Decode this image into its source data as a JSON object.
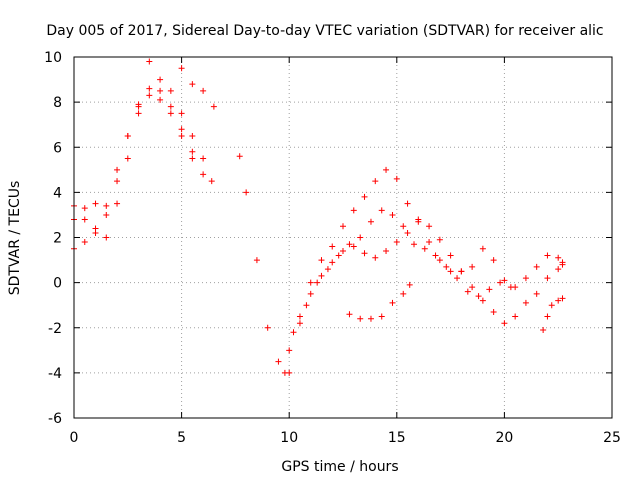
{
  "chart_data": {
    "type": "scatter",
    "title": "Day 005 of 2017, Sidereal Day-to-day VTEC variation (SDTVAR) for receiver alic",
    "xlabel": "GPS time / hours",
    "ylabel": "SDTVAR / TECUs",
    "xlim": [
      0,
      25
    ],
    "ylim": [
      -6,
      10
    ],
    "xticks": [
      "0",
      "5",
      "10",
      "15",
      "20",
      "25"
    ],
    "yticks": [
      "-6",
      "-4",
      "-2",
      "0",
      "2",
      "4",
      "6",
      "8",
      "10"
    ],
    "grid": true,
    "marker": "+",
    "color": "#ff0000",
    "series": [
      {
        "x": [
          0.0,
          0.5,
          1.0,
          1.5,
          2.0,
          2.5,
          3.0,
          3.5,
          4.0,
          4.5,
          5.0,
          5.5,
          6.0,
          6.4
        ],
        "y": [
          3.4,
          2.8,
          2.2,
          2.0,
          3.5,
          5.5,
          7.5,
          9.8,
          9.0,
          8.5,
          7.5,
          6.5,
          5.5,
          4.5
        ]
      },
      {
        "x": [
          0.0,
          0.5,
          1.0,
          1.5,
          2.0,
          2.5,
          3.0,
          3.5,
          4.0,
          4.5,
          5.0,
          5.5,
          6.0
        ],
        "y": [
          1.5,
          1.8,
          2.4,
          3.4,
          5.0,
          6.5,
          7.8,
          8.6,
          8.5,
          7.8,
          6.8,
          5.8,
          4.8
        ]
      },
      {
        "x": [
          0.0,
          0.5,
          1.0,
          1.5,
          2.0,
          2.5,
          3.0,
          3.5,
          4.0,
          4.5,
          5.0,
          5.5
        ],
        "y": [
          2.8,
          3.3,
          3.5,
          3.0,
          4.5,
          6.5,
          7.9,
          8.3,
          8.1,
          7.5,
          6.5,
          5.5
        ]
      },
      {
        "x": [
          5.0,
          5.5,
          6.0,
          6.5
        ],
        "y": [
          9.5,
          8.8,
          8.5,
          7.8
        ]
      },
      {
        "x": [
          7.7,
          8.0,
          8.5,
          9.0,
          9.5,
          10.0
        ],
        "y": [
          5.6,
          4.0,
          1.0,
          -2.0,
          -3.5,
          -4.0
        ]
      },
      {
        "x": [
          9.8,
          10.5,
          11.0,
          11.5,
          12.0,
          12.5,
          13.0,
          13.5,
          14.0,
          14.5,
          15.0,
          15.5,
          16.0,
          16.5,
          17.0,
          17.5,
          18.0,
          18.5,
          19.0,
          19.5,
          20.0,
          20.5,
          21.0,
          21.5,
          22.0,
          22.5,
          22.7
        ],
        "y": [
          -4.0,
          -1.5,
          0.0,
          1.0,
          1.6,
          2.5,
          3.2,
          3.8,
          4.5,
          5.0,
          4.6,
          3.5,
          2.7,
          1.8,
          1.0,
          0.5,
          0.5,
          0.7,
          1.5,
          1.0,
          0.1,
          -0.2,
          0.2,
          0.7,
          1.2,
          1.1,
          0.9
        ]
      },
      {
        "x": [
          10.0,
          10.5,
          11.0,
          11.5,
          12.0,
          12.5,
          13.0,
          13.5,
          14.0,
          14.5,
          15.0,
          15.5,
          16.0,
          16.5,
          17.0,
          17.5,
          18.0,
          18.5,
          19.0,
          19.5,
          20.0,
          20.5,
          21.0,
          21.5,
          22.0,
          22.5,
          22.7
        ],
        "y": [
          -3.0,
          -1.8,
          -0.5,
          0.3,
          0.9,
          1.4,
          1.6,
          1.3,
          1.1,
          1.4,
          1.8,
          2.2,
          2.8,
          2.5,
          1.9,
          1.2,
          0.5,
          -0.2,
          -0.8,
          -1.3,
          -1.8,
          -1.5,
          -0.9,
          -0.5,
          0.2,
          0.6,
          0.8
        ]
      },
      {
        "x": [
          10.2,
          10.8,
          11.3,
          11.8,
          12.3,
          12.8,
          13.3,
          13.8,
          14.3,
          14.8,
          15.3,
          15.8,
          16.3,
          16.8,
          17.3,
          17.8,
          18.3,
          18.8,
          19.3,
          19.8,
          20.3
        ],
        "y": [
          -2.2,
          -1.0,
          0.0,
          0.6,
          1.2,
          1.7,
          2.0,
          2.7,
          3.2,
          3.0,
          2.5,
          1.7,
          1.5,
          1.2,
          0.7,
          0.2,
          -0.4,
          -0.6,
          -0.3,
          0.0,
          -0.2
        ]
      },
      {
        "x": [
          12.8,
          13.3,
          13.8,
          14.3,
          14.8,
          15.3,
          15.6
        ],
        "y": [
          -1.4,
          -1.6,
          -1.6,
          -1.5,
          -0.9,
          -0.5,
          -0.1
        ]
      },
      {
        "x": [
          21.8,
          22.0,
          22.2,
          22.5,
          22.7
        ],
        "y": [
          -2.1,
          -1.5,
          -1.0,
          -0.8,
          -0.7
        ]
      }
    ]
  }
}
